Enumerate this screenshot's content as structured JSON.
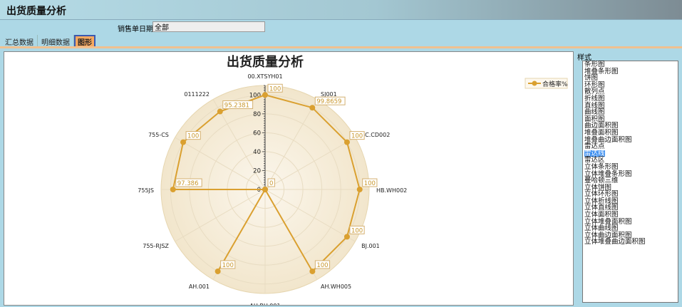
{
  "app": {
    "title": "出货质量分析"
  },
  "filter": {
    "label": "销售单日期",
    "value": "全部"
  },
  "tabs": [
    {
      "label": "汇总数据"
    },
    {
      "label": "明细数据"
    },
    {
      "label": "图形",
      "active": true
    }
  ],
  "style_panel": {
    "label": "样式",
    "options": [
      "条形图",
      "堆叠条形图",
      "饼图",
      "环形图",
      "散列点",
      "折线图",
      "直线图",
      "曲线图",
      "面积图",
      "曲边面积图",
      "堆叠面积图",
      "堆叠曲边面积图",
      "雷达点",
      "雷达线",
      "雷达区",
      "立体条形图",
      "立体堆叠条形图",
      "曼哈顿三维",
      "立体饼图",
      "立体环形图",
      "立体折线图",
      "立体直线图",
      "立体面积图",
      "立体堆叠面积图",
      "立体曲线图",
      "立体曲边面积图",
      "立体堆叠曲边面积图"
    ],
    "selected": "雷达线"
  },
  "chart_data": {
    "type": "radar-line",
    "title": "出货质量分析",
    "categories": [
      "00.XTSYH01",
      "SJ001",
      "SC.CD002",
      "HB.WH002",
      "BJ.001",
      "AH.WH005",
      "AH.RH.001",
      "AH.001",
      "755-RJSZ",
      "755JS",
      "755-CS",
      "0111222"
    ],
    "series": [
      {
        "name": "合格率%",
        "values": [
          100,
          99.8659,
          100,
          100,
          100,
          100,
          0,
          100,
          0,
          97.386,
          100,
          95.2381
        ],
        "color": "#daa030"
      }
    ],
    "data_labels": [
      "100",
      "99.8659",
      "100",
      "100",
      "100",
      "100",
      "0",
      "100",
      "",
      "97.386",
      "100",
      "95.2381"
    ],
    "radial_ticks": [
      0,
      20,
      40,
      60,
      80,
      100
    ],
    "rlim": [
      0,
      110
    ],
    "grid": true,
    "legend": "top-right"
  }
}
